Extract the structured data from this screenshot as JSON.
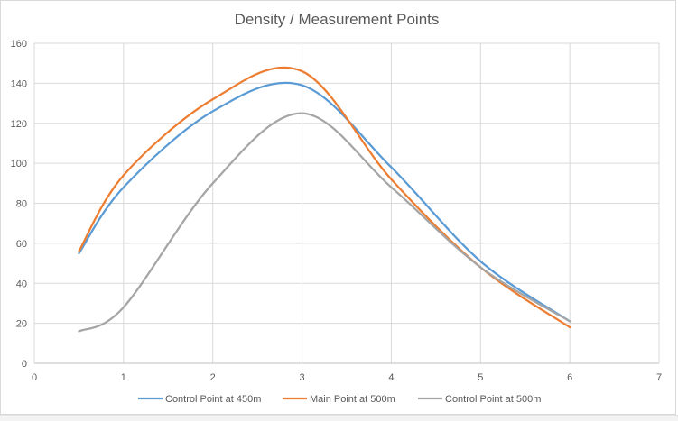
{
  "chart_data": {
    "type": "line",
    "title": "Density / Measurement Points",
    "xlabel": "",
    "ylabel": "",
    "xlim": [
      0,
      7
    ],
    "ylim": [
      0,
      160
    ],
    "x_ticks": [
      "0",
      "1",
      "2",
      "3",
      "4",
      "5",
      "6",
      "7"
    ],
    "y_ticks": [
      "0",
      "20",
      "40",
      "60",
      "80",
      "100",
      "120",
      "140",
      "160"
    ],
    "grid": true,
    "smooth": true,
    "legend_position": "bottom",
    "series": [
      {
        "name": "Control Point at 450m",
        "color": "#5b9bd5",
        "points": [
          {
            "x": 0.5,
            "y": 55
          },
          {
            "x": 1,
            "y": 88
          },
          {
            "x": 2,
            "y": 126
          },
          {
            "x": 3,
            "y": 139
          },
          {
            "x": 4,
            "y": 98
          },
          {
            "x": 5,
            "y": 51
          },
          {
            "x": 6,
            "y": 21
          }
        ]
      },
      {
        "name": "Main Point at 500m",
        "color": "#ed7d31",
        "points": [
          {
            "x": 0.5,
            "y": 56
          },
          {
            "x": 1,
            "y": 94
          },
          {
            "x": 2,
            "y": 132
          },
          {
            "x": 3,
            "y": 146
          },
          {
            "x": 4,
            "y": 92
          },
          {
            "x": 5,
            "y": 48
          },
          {
            "x": 6,
            "y": 18
          }
        ]
      },
      {
        "name": "Control Point at 500m",
        "color": "#a5a5a5",
        "points": [
          {
            "x": 0.5,
            "y": 16
          },
          {
            "x": 1,
            "y": 28
          },
          {
            "x": 2,
            "y": 90
          },
          {
            "x": 3,
            "y": 125
          },
          {
            "x": 4,
            "y": 88
          },
          {
            "x": 5,
            "y": 48
          },
          {
            "x": 6,
            "y": 21
          }
        ]
      }
    ]
  }
}
